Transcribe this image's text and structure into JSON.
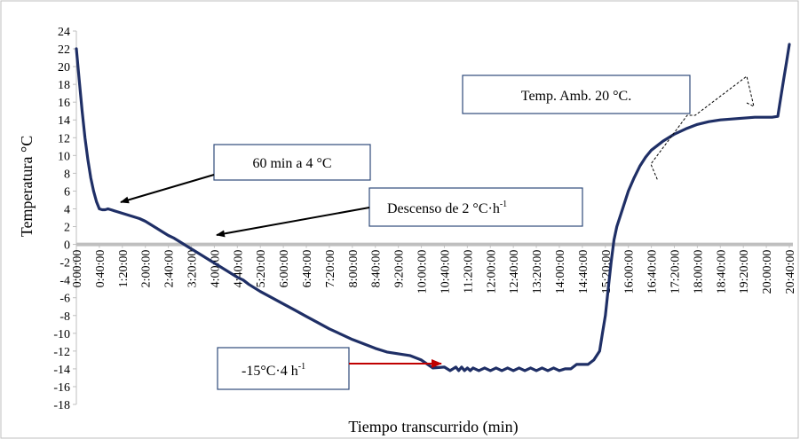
{
  "chart_data": {
    "type": "line",
    "title": "",
    "xlabel": "Tiempo transcurrido (min)",
    "ylabel": "Temperatura °C",
    "ylim": [
      -18,
      24
    ],
    "yticks": [
      -18,
      -16,
      -14,
      -12,
      -10,
      -8,
      -6,
      -4,
      -2,
      0,
      2,
      4,
      6,
      8,
      10,
      12,
      14,
      16,
      18,
      20,
      22,
      24
    ],
    "xlim_min": [
      0,
      1240
    ],
    "xticks": [
      "0:00:00",
      "0:40:00",
      "1:20:00",
      "2:00:00",
      "2:40:00",
      "3:20:00",
      "4:00:00",
      "4:40:00",
      "5:20:00",
      "6:00:00",
      "6:40:00",
      "7:20:00",
      "8:00:00",
      "8:40:00",
      "9:20:00",
      "10:00:00",
      "10:40:00",
      "11:20:00",
      "12:00:00",
      "12:40:00",
      "13:20:00",
      "14:00:00",
      "14:40:00",
      "15:20:00",
      "16:00:00",
      "16:40:00",
      "17:20:00",
      "18:00:00",
      "18:40:00",
      "19:20:00",
      "20:00:00",
      "20:40:00"
    ],
    "grid": false,
    "zero_line": true,
    "colors": {
      "series": "#1f2f66",
      "zero_line": "#bfbfbf",
      "red_arrow": "#c00000",
      "frame": "#bfbfbf",
      "box_border": "#2e4a7a"
    },
    "series": [
      {
        "x": [
          0,
          5,
          10,
          15,
          20,
          25,
          30,
          35,
          40,
          45,
          50,
          55,
          60,
          70,
          80,
          90,
          100,
          110,
          120,
          130,
          140,
          150,
          160,
          170,
          180,
          190,
          200,
          210,
          220,
          230,
          240,
          250,
          260,
          270,
          280,
          290,
          300,
          320,
          340,
          360,
          380,
          400,
          420,
          440,
          460,
          480,
          500,
          520,
          540,
          560,
          580,
          600,
          620,
          640,
          650,
          660,
          665,
          670,
          675,
          680,
          685,
          690,
          700,
          710,
          720,
          730,
          740,
          750,
          760,
          770,
          780,
          790,
          800,
          810,
          820,
          830,
          840,
          850,
          860,
          870,
          880,
          890,
          900,
          910,
          915,
          920,
          925,
          930,
          935,
          940,
          950,
          960,
          970,
          980,
          990,
          1000,
          1020,
          1040,
          1060,
          1080,
          1100,
          1120,
          1140,
          1160,
          1180,
          1200,
          1210,
          1220,
          1225,
          1230,
          1235,
          1240
        ],
        "y": [
          22,
          18.5,
          15,
          12,
          9.5,
          7.5,
          6,
          4.8,
          4,
          3.9,
          3.9,
          4,
          3.9,
          3.7,
          3.5,
          3.3,
          3.1,
          2.9,
          2.6,
          2.2,
          1.8,
          1.4,
          1.0,
          0.7,
          0.3,
          -0.1,
          -0.5,
          -0.9,
          -1.3,
          -1.7,
          -2.1,
          -2.5,
          -2.9,
          -3.3,
          -3.7,
          -4.0,
          -4.5,
          -5.3,
          -6.0,
          -6.7,
          -7.4,
          -8.1,
          -8.8,
          -9.5,
          -10.1,
          -10.7,
          -11.2,
          -11.7,
          -12.1,
          -12.3,
          -12.5,
          -13.0,
          -13.9,
          -13.8,
          -14.2,
          -13.8,
          -14.2,
          -13.8,
          -14.2,
          -13.9,
          -14.2,
          -13.9,
          -14.2,
          -13.9,
          -14.2,
          -13.9,
          -14.2,
          -13.9,
          -14.2,
          -13.9,
          -14.2,
          -13.9,
          -14.2,
          -13.9,
          -14.2,
          -13.9,
          -14.2,
          -14.0,
          -14.0,
          -13.5,
          -13.5,
          -13.5,
          -13.0,
          -12.0,
          -10.0,
          -8.0,
          -5.0,
          -2.0,
          0.5,
          2.0,
          4.0,
          6.0,
          7.5,
          8.8,
          9.8,
          10.6,
          11.6,
          12.4,
          13.0,
          13.5,
          13.8,
          14.0,
          14.1,
          14.2,
          14.3,
          14.3,
          14.3,
          14.4,
          16.5,
          18.5,
          20.5,
          22.5
        ]
      }
    ],
    "annotations": [
      {
        "text": "Temp. Amb. 20 °C."
      },
      {
        "text": "60 min a 4 °C"
      },
      {
        "text_main": "Descenso de 2 °C·h",
        "text_sup": "-1"
      },
      {
        "text_main": "-15°C·4 h",
        "text_sup": "-1"
      }
    ]
  }
}
